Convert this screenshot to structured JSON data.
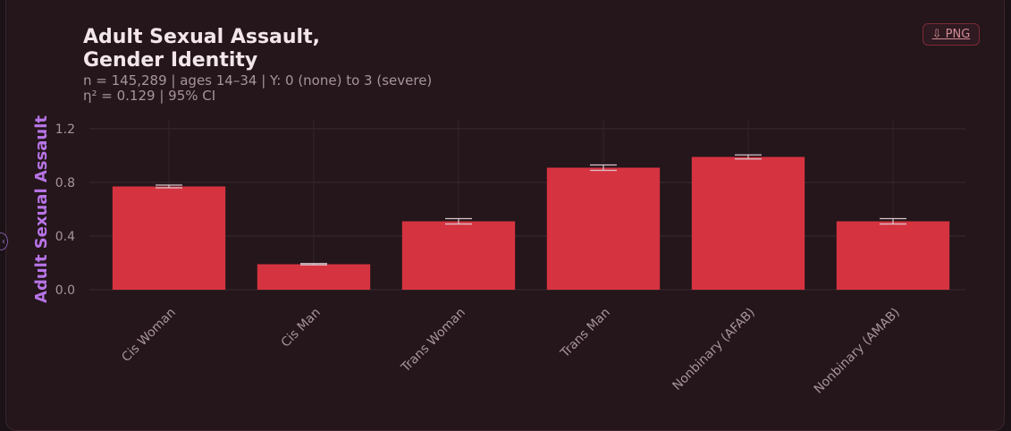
{
  "chart": {
    "title": "Adult Sexual Assault,\nGender Identity",
    "subtitle": "n = 145,289  |  ages 14–34  |  Y: 0 (none) to 3 (severe)\nη² = 0.129  |  95% CI",
    "png_label": "⇩ PNG"
  },
  "colors": {
    "bar": "#d63340",
    "error": "#d9c6cc",
    "accent": "#b774e6"
  },
  "chart_data": {
    "type": "bar",
    "categories": [
      "Cis Woman",
      "Cis Man",
      "Trans Woman",
      "Trans Man",
      "Nonbinary (AFAB)",
      "Nonbinary (AMAB)"
    ],
    "values": [
      0.77,
      0.19,
      0.51,
      0.91,
      0.99,
      0.51
    ],
    "ci_low": [
      0.76,
      0.185,
      0.49,
      0.89,
      0.975,
      0.49
    ],
    "ci_high": [
      0.78,
      0.195,
      0.53,
      0.93,
      1.005,
      0.53
    ],
    "title": "Adult Sexual Assault,\nGender Identity",
    "ylabel": "Adult Sexual Assault",
    "xlabel": "",
    "ylim": [
      0,
      1.2
    ],
    "yticks": [
      0.0,
      0.4,
      0.8,
      1.2
    ],
    "ytick_labels": [
      "0.0",
      "0.4",
      "0.8",
      "1.2"
    ],
    "grid": true
  }
}
